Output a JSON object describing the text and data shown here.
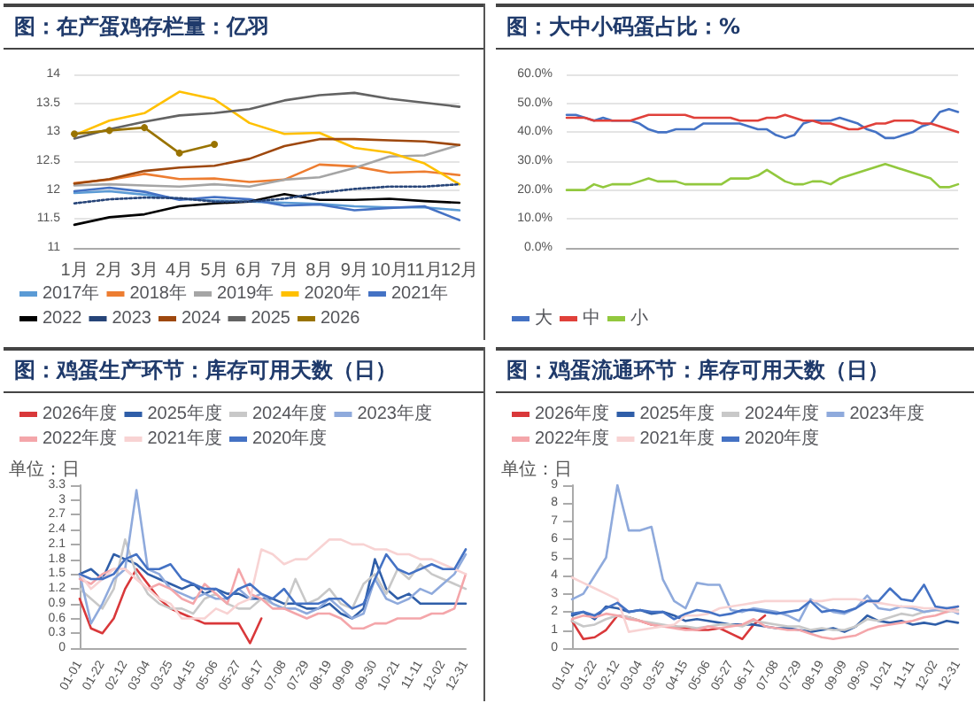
{
  "chart_data": [
    {
      "type": "line",
      "title": "图：在产蛋鸡存栏量：亿羽",
      "categories": [
        "1月",
        "2月",
        "3月",
        "4月",
        "5月",
        "6月",
        "7月",
        "8月",
        "9月",
        "10月",
        "11月",
        "12月"
      ],
      "ylim": [
        11,
        14
      ],
      "yticks": [
        11,
        11.5,
        12,
        12.5,
        13,
        13.5,
        14
      ],
      "grid": "y",
      "legend": "bottom",
      "marker": "none",
      "tick_labels": true,
      "series": [
        {
          "name": "2017年",
          "color": "#5b9bd5",
          "values": [
            11.95,
            11.98,
            11.92,
            11.85,
            11.82,
            11.8,
            11.78,
            11.76,
            11.72,
            11.7,
            11.7,
            11.65
          ]
        },
        {
          "name": "2018年",
          "color": "#ed7d31",
          "values": [
            12.12,
            12.18,
            12.28,
            12.19,
            12.2,
            12.14,
            12.18,
            12.44,
            12.41,
            12.3,
            12.32,
            12.26
          ]
        },
        {
          "name": "2019年",
          "color": "#a5a5a5",
          "values": [
            12.08,
            12.1,
            12.08,
            12.06,
            12.1,
            12.06,
            12.18,
            12.22,
            12.38,
            12.58,
            12.6,
            12.78
          ]
        },
        {
          "name": "2020年",
          "color": "#ffc000",
          "values": [
            12.95,
            13.2,
            13.33,
            13.7,
            13.57,
            13.16,
            12.97,
            12.99,
            12.73,
            12.65,
            12.46,
            12.1
          ]
        },
        {
          "name": "2021年",
          "color": "#4472c4",
          "values": [
            11.98,
            12.04,
            11.97,
            11.83,
            11.88,
            11.84,
            11.73,
            11.75,
            11.65,
            11.69,
            11.72,
            11.48
          ]
        },
        {
          "name": "2022",
          "color": "#000000",
          "values": [
            11.4,
            11.53,
            11.58,
            11.72,
            11.77,
            11.8,
            11.93,
            11.83,
            11.83,
            11.85,
            11.81,
            11.78
          ]
        },
        {
          "name": "2023",
          "color": "#264478",
          "line_style": "dotted",
          "values": [
            11.77,
            11.84,
            11.87,
            11.86,
            11.8,
            11.8,
            11.85,
            11.95,
            12.02,
            12.06,
            12.06,
            12.1
          ]
        },
        {
          "name": "2024",
          "color": "#9e480e",
          "values": [
            12.11,
            12.19,
            12.33,
            12.39,
            12.42,
            12.54,
            12.76,
            12.88,
            12.88,
            12.86,
            12.84,
            12.78
          ]
        },
        {
          "name": "2025",
          "color": "#636363",
          "values": [
            12.89,
            13.05,
            13.18,
            13.29,
            13.33,
            13.4,
            13.55,
            13.64,
            13.68,
            13.58,
            13.51,
            13.44
          ]
        },
        {
          "name": "2026",
          "color": "#997300",
          "marker": "circle",
          "values": [
            12.97,
            13.03,
            13.08,
            12.64,
            12.79,
            null,
            null,
            null,
            null,
            null,
            null,
            null
          ]
        }
      ]
    },
    {
      "type": "line",
      "title": "图：大中小码蛋占比：%",
      "categories": [
        null,
        null,
        null,
        null,
        null,
        null,
        null,
        null,
        null,
        null,
        null,
        null,
        null,
        null,
        null,
        null,
        null,
        null,
        null,
        null,
        null,
        null,
        null,
        null,
        null,
        null,
        null,
        null,
        null,
        null,
        null,
        null,
        null,
        null,
        null,
        null,
        null,
        null,
        null,
        null,
        null,
        null,
        null,
        null
      ],
      "ylim": [
        0,
        60
      ],
      "yticks": [
        {
          "value": 0,
          "label": "0.0%"
        },
        {
          "value": 10,
          "label": "10.0%"
        },
        {
          "value": 20,
          "label": "20.0%"
        },
        {
          "value": 30,
          "label": "30.0%"
        },
        {
          "value": 40,
          "label": "40.0%"
        },
        {
          "value": 50,
          "label": "50.0%"
        },
        {
          "value": 60,
          "label": "60.0%"
        }
      ],
      "grid": "y",
      "legend": "bottom",
      "marker": "none",
      "tick_labels": "y",
      "series": [
        {
          "name": "大",
          "color": "#4472c4",
          "values": [
            46,
            46,
            45,
            44,
            45,
            44,
            44,
            44,
            43,
            41,
            40,
            40,
            41,
            41,
            41,
            43,
            43,
            43,
            43,
            43,
            42,
            41,
            41,
            39,
            38,
            39,
            43,
            44,
            44,
            44,
            45,
            44,
            43,
            41,
            40,
            38,
            38,
            39,
            40,
            42,
            43,
            47,
            48,
            47
          ]
        },
        {
          "name": "中",
          "color": "#e0403a",
          "values": [
            45,
            45,
            45,
            44,
            44,
            44,
            44,
            44,
            45,
            46,
            46,
            46,
            46,
            46,
            45,
            45,
            45,
            45,
            45,
            44,
            44,
            44,
            45,
            45,
            46,
            45,
            44,
            44,
            43,
            43,
            42,
            41,
            41,
            42,
            43,
            43,
            44,
            44,
            44,
            43,
            43,
            42,
            41,
            40
          ]
        },
        {
          "name": "小",
          "color": "#92c83e",
          "values": [
            20,
            20,
            20,
            22,
            21,
            22,
            22,
            22,
            23,
            24,
            23,
            23,
            23,
            22,
            22,
            22,
            22,
            22,
            24,
            24,
            24,
            25,
            27,
            25,
            23,
            22,
            22,
            23,
            23,
            22,
            24,
            25,
            26,
            27,
            28,
            29,
            28,
            27,
            26,
            25,
            24,
            21,
            21,
            22
          ]
        }
      ]
    },
    {
      "type": "line",
      "title": "图：鸡蛋生产环节：库存可用天数（日）",
      "ylabel": "单位：日",
      "categories": [
        "01-01",
        null,
        "01-22",
        null,
        "02-12",
        null,
        "03-04",
        null,
        "03-25",
        null,
        "04-15",
        null,
        "05-06",
        null,
        "05-27",
        null,
        "06-17",
        null,
        "07-08",
        null,
        "07-29",
        null,
        "08-19",
        null,
        "09-09",
        null,
        "09-30",
        null,
        "10-21",
        null,
        "11-11",
        null,
        "12-02",
        null,
        "12-31"
      ],
      "ylim": [
        0,
        3.3
      ],
      "yticks": [
        0,
        0.3,
        0.6,
        0.9,
        1.2,
        1.5,
        1.8,
        2.1,
        2.4,
        2.7,
        3,
        3.3
      ],
      "grid": false,
      "legend": "top",
      "marker": "none",
      "series": [
        {
          "name": "2026年度",
          "color": "#d9383a",
          "values": [
            1.0,
            0.4,
            0.3,
            0.6,
            1.2,
            1.6,
            1.3,
            1.0,
            0.8,
            0.7,
            0.6,
            0.5,
            0.5,
            0.5,
            0.5,
            0.1,
            0.6,
            null,
            null,
            null,
            null,
            null,
            null,
            null,
            null,
            null,
            null,
            null,
            null,
            null,
            null,
            null,
            null,
            null,
            null
          ]
        },
        {
          "name": "2025年度",
          "color": "#2f5ea8",
          "values": [
            1.5,
            1.6,
            1.4,
            1.9,
            1.8,
            1.7,
            1.5,
            1.4,
            1.3,
            1.2,
            1.3,
            1.1,
            1.2,
            1.1,
            1.1,
            1.0,
            1.0,
            1.0,
            0.9,
            0.9,
            0.8,
            0.8,
            0.9,
            0.7,
            0.6,
            0.8,
            1.8,
            1.2,
            1.0,
            1.1,
            0.9,
            0.9,
            0.9,
            0.9,
            0.9
          ]
        },
        {
          "name": "2024年度",
          "color": "#c8c8c8",
          "values": [
            1.2,
            1.0,
            0.8,
            1.2,
            2.2,
            1.5,
            1.1,
            0.9,
            0.8,
            0.8,
            0.7,
            1.0,
            1.1,
            0.9,
            0.8,
            0.8,
            1.0,
            0.9,
            0.8,
            1.4,
            0.9,
            1.0,
            1.2,
            0.9,
            0.8,
            1.3,
            1.5,
            1.1,
            1.6,
            1.4,
            1.7,
            1.5,
            1.4,
            1.3,
            1.2
          ]
        },
        {
          "name": "2023年度",
          "color": "#8faadc",
          "values": [
            1.5,
            0.5,
            0.9,
            1.4,
            1.6,
            3.2,
            1.6,
            1.5,
            1.2,
            1.1,
            1.0,
            1.1,
            1.0,
            1.0,
            1.2,
            1.0,
            1.1,
            0.9,
            0.8,
            0.8,
            0.7,
            0.8,
            1.0,
            0.8,
            0.6,
            0.7,
            1.4,
            1.0,
            0.9,
            1.0,
            1.2,
            1.1,
            1.3,
            1.5,
            1.9
          ]
        },
        {
          "name": "2022年度",
          "color": "#f4a6aa",
          "values": [
            1.4,
            1.3,
            1.5,
            1.6,
            1.6,
            1.4,
            1.2,
            1.3,
            1.2,
            1.0,
            0.9,
            1.3,
            1.1,
            0.9,
            1.6,
            1.1,
            1.0,
            0.8,
            0.8,
            0.7,
            0.6,
            0.7,
            0.7,
            0.6,
            0.4,
            0.4,
            0.5,
            0.5,
            0.6,
            0.6,
            0.6,
            0.7,
            0.7,
            0.8,
            1.5
          ]
        },
        {
          "name": "2021年度",
          "color": "#f8d3d3",
          "values": [
            1.5,
            1.2,
            1.4,
            1.6,
            1.6,
            1.4,
            1.2,
            1.0,
            0.9,
            0.6,
            0.6,
            0.6,
            0.8,
            0.7,
            0.9,
            1.0,
            2.0,
            1.9,
            1.7,
            1.8,
            1.8,
            2.0,
            2.2,
            2.2,
            2.1,
            2.1,
            2.0,
            2.0,
            1.9,
            1.9,
            1.8,
            1.8,
            1.7,
            1.6,
            1.5
          ]
        },
        {
          "name": "2020年度",
          "color": "#4472c4",
          "values": [
            1.5,
            1.4,
            1.4,
            1.5,
            1.8,
            1.9,
            1.6,
            1.6,
            1.7,
            1.4,
            1.3,
            1.2,
            1.2,
            1.0,
            1.2,
            1.3,
            1.1,
            1.0,
            1.2,
            0.9,
            0.9,
            0.9,
            1.0,
            1.0,
            0.8,
            0.9,
            1.4,
            1.9,
            1.6,
            1.5,
            1.6,
            1.7,
            1.6,
            1.6,
            2.0
          ]
        }
      ]
    },
    {
      "type": "line",
      "title": "图：鸡蛋流通环节：库存可用天数（日）",
      "ylabel": "单位：日",
      "categories": [
        "01-01",
        null,
        "01-22",
        null,
        "02-12",
        null,
        "03-04",
        null,
        "03-25",
        null,
        "04-15",
        null,
        "05-06",
        null,
        "05-27",
        null,
        "06-17",
        null,
        "07-08",
        null,
        "07-29",
        null,
        "08-19",
        null,
        "09-09",
        null,
        "09-30",
        null,
        "10-21",
        null,
        "11-11",
        null,
        "12-02",
        null,
        "12-31"
      ],
      "ylim": [
        0,
        9
      ],
      "yticks": [
        0,
        1,
        2,
        3,
        4,
        5,
        6,
        7,
        8,
        9
      ],
      "grid": false,
      "legend": "top",
      "marker": "none",
      "series": [
        {
          "name": "2026年度",
          "color": "#d9383a",
          "values": [
            1.5,
            0.5,
            0.6,
            1.0,
            1.8,
            1.7,
            1.5,
            1.3,
            1.2,
            1.2,
            1.1,
            1.0,
            1.0,
            1.1,
            0.8,
            0.5,
            1.3,
            1.8,
            null,
            null,
            null,
            null,
            null,
            null,
            null,
            null,
            null,
            null,
            null,
            null,
            null,
            null,
            null,
            null,
            null
          ]
        },
        {
          "name": "2025年度",
          "color": "#2f5ea8",
          "values": [
            1.8,
            2.0,
            1.6,
            2.3,
            2.2,
            2.0,
            2.1,
            1.9,
            2.0,
            1.8,
            1.5,
            1.6,
            1.5,
            1.4,
            1.3,
            1.3,
            1.3,
            1.2,
            1.1,
            1.1,
            1.0,
            0.9,
            1.0,
            1.1,
            0.9,
            1.2,
            1.8,
            1.5,
            1.4,
            1.5,
            1.3,
            1.4,
            1.3,
            1.5,
            1.4
          ]
        },
        {
          "name": "2024年度",
          "color": "#c8c8c8",
          "values": [
            1.5,
            1.2,
            1.3,
            1.6,
            1.8,
            1.7,
            1.5,
            1.4,
            1.3,
            1.2,
            1.2,
            1.1,
            1.2,
            1.3,
            1.3,
            1.2,
            1.5,
            1.4,
            1.3,
            1.2,
            1.2,
            1.0,
            1.1,
            1.0,
            1.0,
            1.2,
            1.6,
            1.5,
            1.7,
            1.9,
            1.8,
            2.0,
            2.1,
            2.0,
            2.1
          ]
        },
        {
          "name": "2023年度",
          "color": "#8faadc",
          "values": [
            2.7,
            3.0,
            4.0,
            5.0,
            9.0,
            6.5,
            6.5,
            6.7,
            3.8,
            2.6,
            2.2,
            3.6,
            3.5,
            3.5,
            2.1,
            2.0,
            2.2,
            2.1,
            2.0,
            1.8,
            1.5,
            2.7,
            2.3,
            2.0,
            1.9,
            2.2,
            2.9,
            2.2,
            2.1,
            2.3,
            2.2,
            2.0,
            2.1,
            2.2,
            1.9
          ]
        },
        {
          "name": "2022年度",
          "color": "#f4a6aa",
          "values": [
            1.6,
            1.8,
            1.7,
            1.9,
            1.8,
            1.6,
            1.5,
            1.3,
            1.2,
            1.1,
            1.0,
            1.0,
            1.2,
            1.1,
            1.2,
            1.3,
            1.6,
            1.2,
            1.1,
            1.0,
            1.0,
            0.8,
            0.6,
            0.5,
            0.6,
            0.7,
            1.0,
            1.2,
            1.3,
            1.4,
            1.5,
            1.7,
            1.8,
            2.0,
            2.3
          ]
        },
        {
          "name": "2021年度",
          "color": "#f8d3d3",
          "values": [
            3.9,
            3.6,
            3.3,
            3.0,
            2.7,
            0.9,
            1.0,
            1.1,
            1.2,
            1.3,
            1.8,
            1.8,
            1.9,
            2.2,
            2.3,
            2.4,
            2.5,
            2.6,
            2.6,
            2.6,
            2.6,
            2.6,
            2.6,
            2.7,
            2.7,
            2.7,
            2.6,
            2.5,
            2.4,
            2.3,
            2.3,
            2.2,
            2.2,
            2.1,
            2.0
          ]
        },
        {
          "name": "2020年度",
          "color": "#4472c4",
          "values": [
            1.9,
            2.0,
            1.8,
            2.2,
            2.5,
            2.0,
            2.1,
            2.0,
            2.0,
            1.6,
            1.9,
            2.1,
            2.0,
            1.8,
            1.9,
            2.1,
            2.1,
            2.0,
            1.9,
            2.0,
            2.1,
            2.6,
            2.0,
            2.1,
            2.0,
            2.2,
            2.6,
            2.6,
            3.3,
            2.7,
            2.6,
            3.5,
            2.3,
            2.2,
            2.3
          ]
        }
      ]
    }
  ]
}
